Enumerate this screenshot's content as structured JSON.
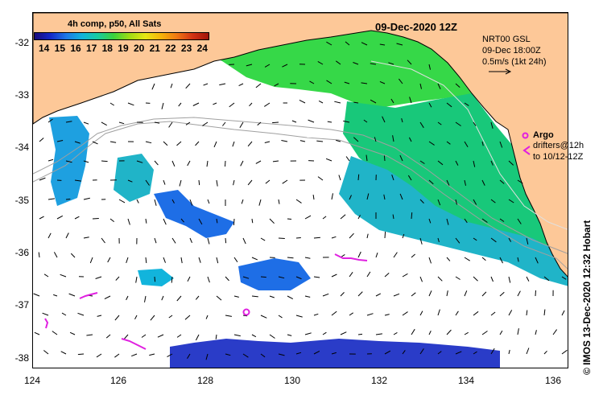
{
  "colors": {
    "land": "#fdc898",
    "ocean_nodata": "#ffffff",
    "argo": "#e020e0",
    "drifter": "#e020e0",
    "isobath": "#a0a0a0",
    "sst_warm_green": "#36d848",
    "sst_mid_green": "#18c87a",
    "sst_teal": "#20b4c8",
    "sst_cyan_blue": "#1ea0e0",
    "sst_blue": "#1e6ee6",
    "sst_dark_blue": "#2a3cc8"
  },
  "colorbar": {
    "title": "4h comp, p50, All Sats",
    "labels": [
      "14",
      "15",
      "16",
      "17",
      "18",
      "19",
      "20",
      "21",
      "22",
      "23",
      "24"
    ]
  },
  "header": {
    "date": "09-Dec-2020 12Z"
  },
  "velocity_legend": {
    "line1": "NRT00 GSL",
    "line2": "09-Dec 18:00Z",
    "line3": "0.5m/s (1kt 24h)"
  },
  "argo_legend": {
    "label": "Argo",
    "drifter_line1": "drifters@12h",
    "drifter_line2": "to 10/12-12Z"
  },
  "credit": "© IMOS 13-Dec-2020 12:32 Hobart",
  "axes": {
    "x_ticks": [
      "124",
      "126",
      "128",
      "130",
      "132",
      "134",
      "136"
    ],
    "y_ticks": [
      "-32",
      "-33",
      "-34",
      "-35",
      "-36",
      "-37",
      "-38"
    ]
  }
}
